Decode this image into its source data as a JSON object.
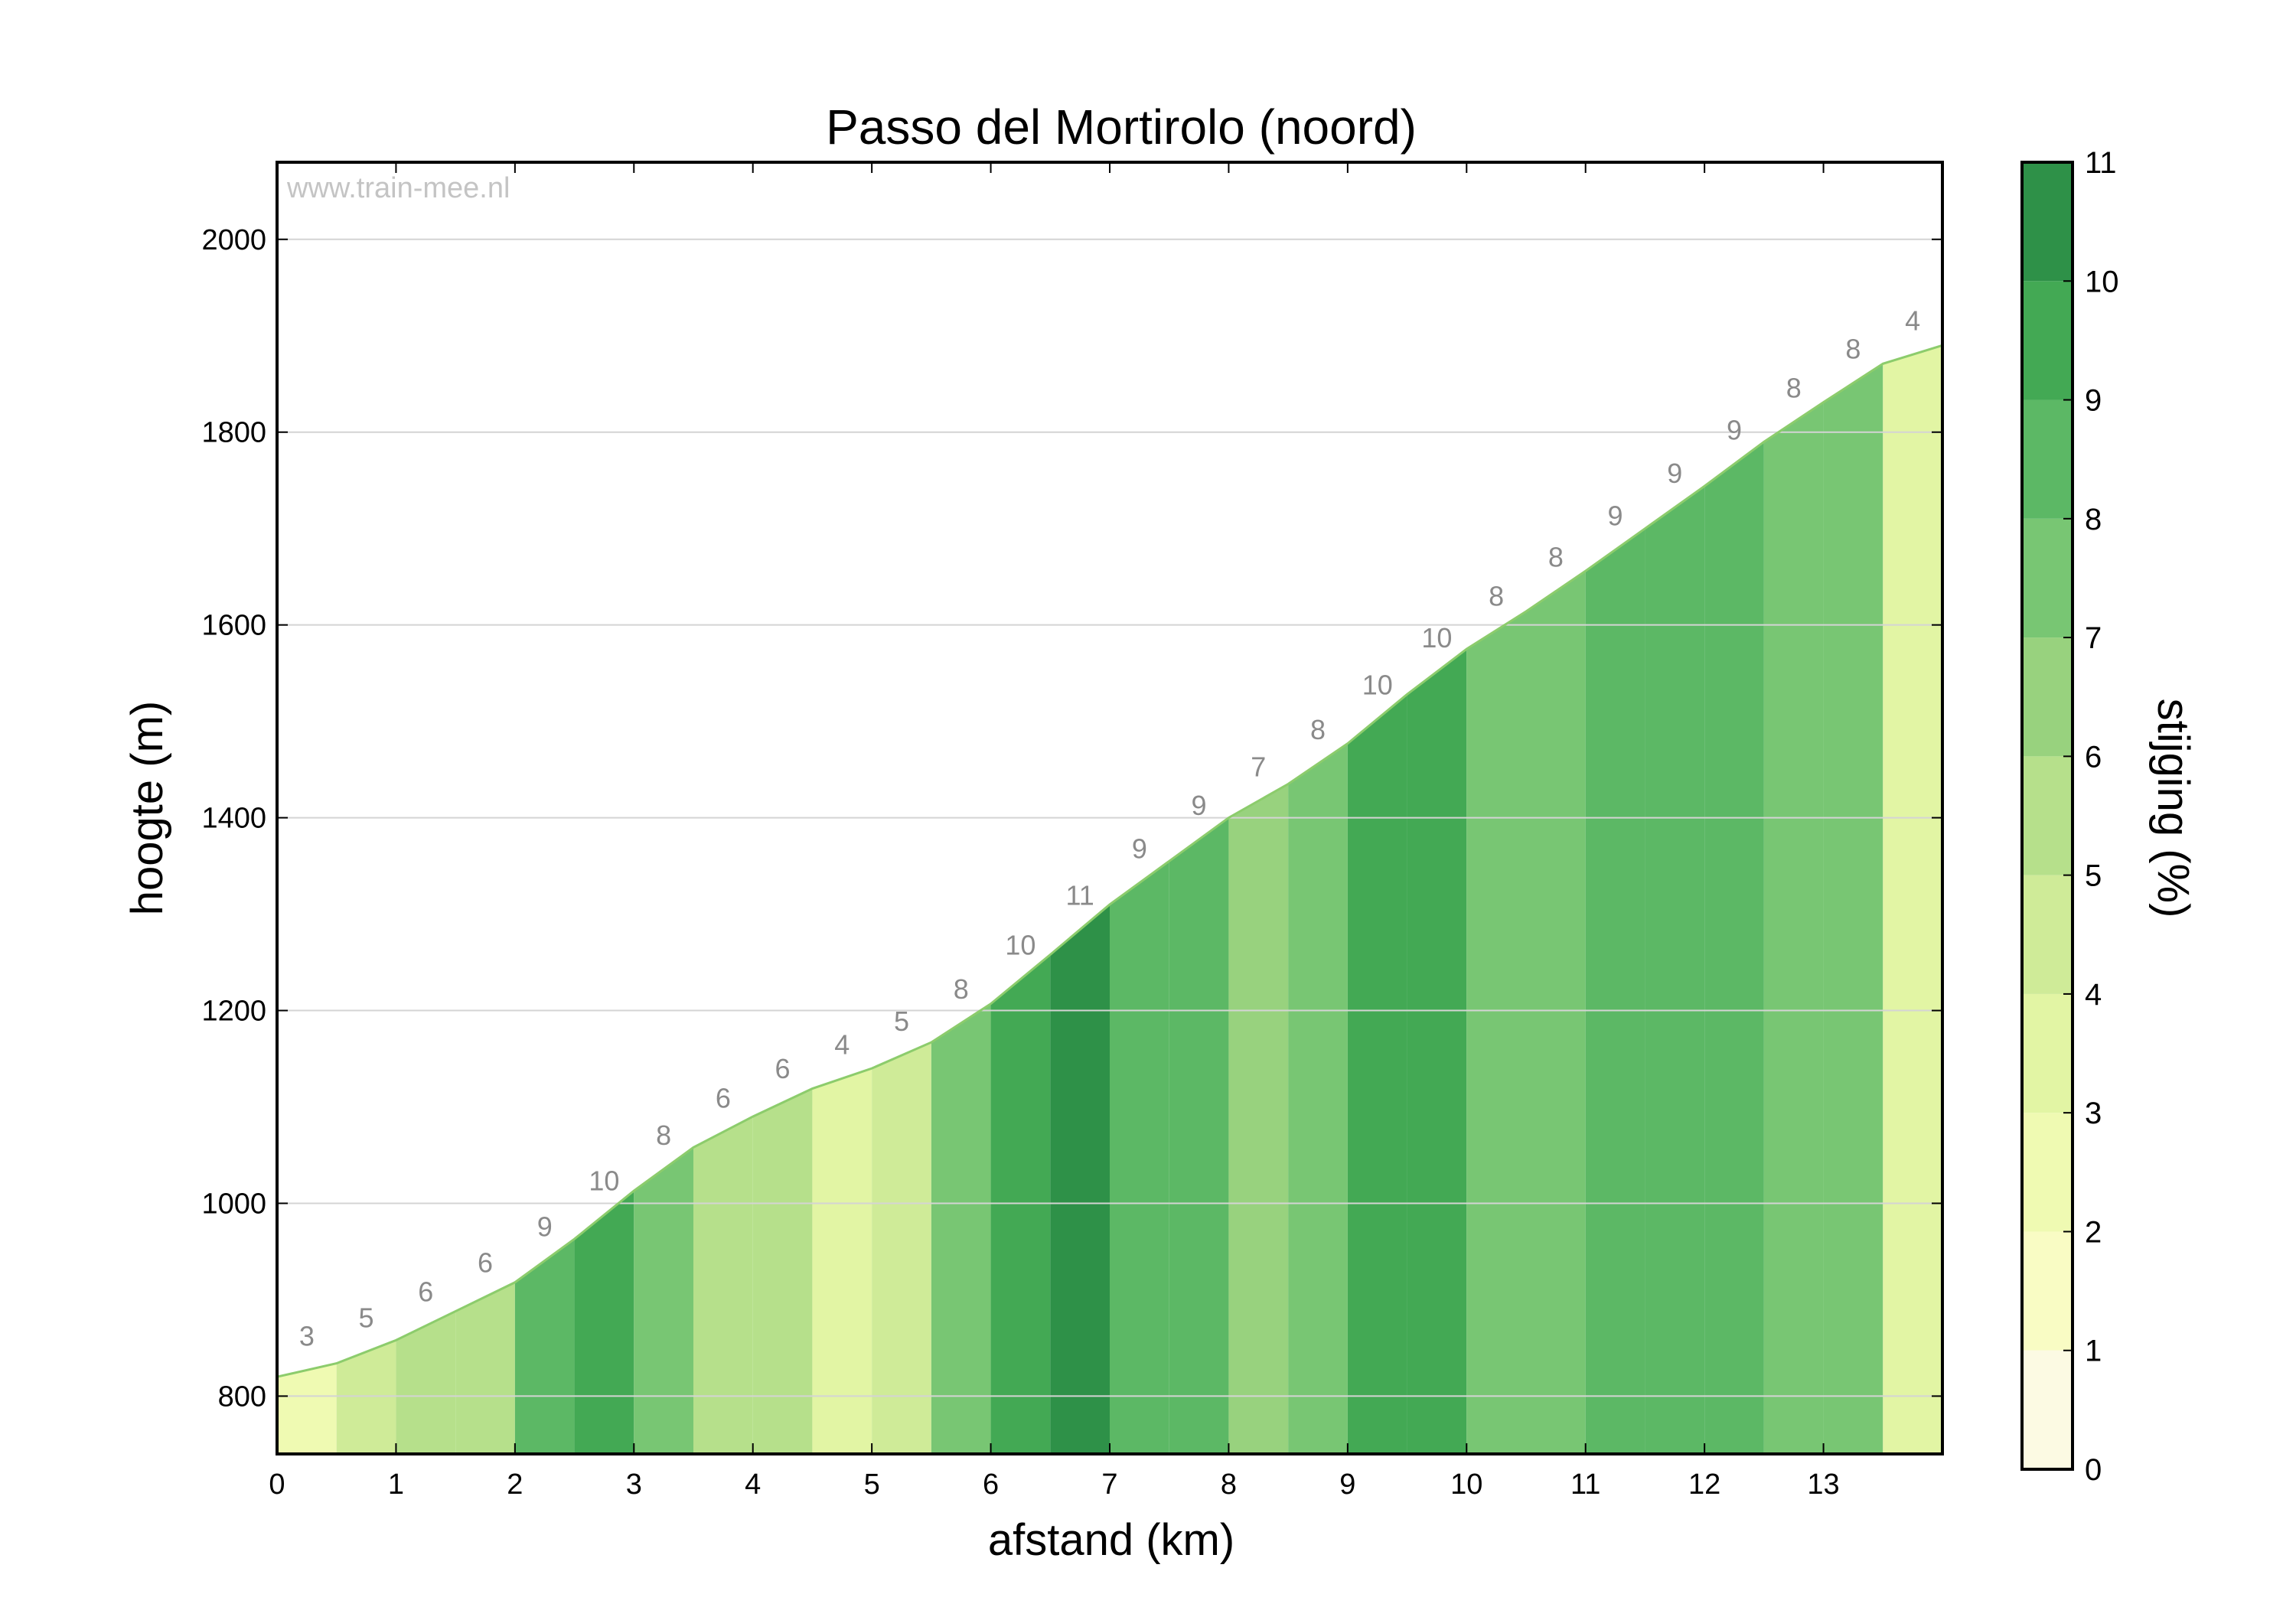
{
  "chart_data": {
    "type": "area",
    "title": "Passo del Mortirolo (noord)",
    "xlabel": "afstand (km)",
    "ylabel": "hoogte (m)",
    "watermark": "www.train-mee.nl",
    "xlim": [
      0,
      14
    ],
    "ylim": [
      740,
      2080
    ],
    "x_ticks": [
      0,
      1,
      2,
      3,
      4,
      5,
      6,
      7,
      8,
      9,
      10,
      11,
      12,
      13
    ],
    "y_ticks": [
      800,
      1000,
      1200,
      1400,
      1600,
      1800,
      2000
    ],
    "grid": "horizontal",
    "segments": [
      {
        "x_start": 0.0,
        "x_end": 0.5,
        "grade": 3
      },
      {
        "x_start": 0.5,
        "x_end": 1.0,
        "grade": 5
      },
      {
        "x_start": 1.0,
        "x_end": 1.5,
        "grade": 6
      },
      {
        "x_start": 1.5,
        "x_end": 2.0,
        "grade": 6
      },
      {
        "x_start": 2.0,
        "x_end": 2.5,
        "grade": 9
      },
      {
        "x_start": 2.5,
        "x_end": 3.0,
        "grade": 10
      },
      {
        "x_start": 3.0,
        "x_end": 3.5,
        "grade": 8
      },
      {
        "x_start": 3.5,
        "x_end": 4.0,
        "grade": 6
      },
      {
        "x_start": 4.0,
        "x_end": 4.5,
        "grade": 6
      },
      {
        "x_start": 4.5,
        "x_end": 5.0,
        "grade": 4
      },
      {
        "x_start": 5.0,
        "x_end": 5.5,
        "grade": 5
      },
      {
        "x_start": 5.5,
        "x_end": 6.0,
        "grade": 8
      },
      {
        "x_start": 6.0,
        "x_end": 6.5,
        "grade": 10
      },
      {
        "x_start": 6.5,
        "x_end": 7.0,
        "grade": 11
      },
      {
        "x_start": 7.0,
        "x_end": 7.5,
        "grade": 9
      },
      {
        "x_start": 7.5,
        "x_end": 8.0,
        "grade": 9
      },
      {
        "x_start": 8.0,
        "x_end": 8.5,
        "grade": 7
      },
      {
        "x_start": 8.5,
        "x_end": 9.0,
        "grade": 8
      },
      {
        "x_start": 9.0,
        "x_end": 9.5,
        "grade": 10
      },
      {
        "x_start": 9.5,
        "x_end": 10.0,
        "grade": 10
      },
      {
        "x_start": 10.0,
        "x_end": 10.5,
        "grade": 8
      },
      {
        "x_start": 10.5,
        "x_end": 11.0,
        "grade": 8
      },
      {
        "x_start": 11.0,
        "x_end": 11.5,
        "grade": 9
      },
      {
        "x_start": 11.5,
        "x_end": 12.0,
        "grade": 9
      },
      {
        "x_start": 12.0,
        "x_end": 12.5,
        "grade": 9
      },
      {
        "x_start": 12.5,
        "x_end": 13.0,
        "grade": 8
      },
      {
        "x_start": 13.0,
        "x_end": 13.5,
        "grade": 8
      },
      {
        "x_start": 13.5,
        "x_end": 14.0,
        "grade": 4
      }
    ],
    "elevation_profile": {
      "x": [
        0.0,
        0.5,
        1.0,
        1.5,
        2.0,
        2.5,
        3.0,
        3.5,
        4.0,
        4.5,
        5.0,
        5.5,
        6.0,
        6.5,
        7.0,
        7.5,
        8.0,
        8.5,
        9.0,
        9.5,
        10.0,
        10.5,
        11.0,
        11.5,
        12.0,
        12.5,
        13.0,
        13.5,
        14.0
      ],
      "y": [
        820,
        834,
        858,
        888,
        918,
        963,
        1013,
        1058,
        1090,
        1119,
        1140,
        1167,
        1207,
        1258,
        1310,
        1355,
        1400,
        1435,
        1477,
        1528,
        1575,
        1614,
        1656,
        1700,
        1744,
        1790,
        1831,
        1871,
        1890
      ]
    },
    "colorbar": {
      "label": "stijging (%)",
      "range": [
        0,
        11
      ],
      "ticks": [
        0,
        1,
        2,
        3,
        4,
        5,
        6,
        7,
        8,
        9,
        10,
        11
      ],
      "colors": [
        "#fcfae3",
        "#f9fcc4",
        "#effab2",
        "#e2f5a4",
        "#cfeb98",
        "#b6e08b",
        "#98d27e",
        "#78c673",
        "#5cb865",
        "#43a954",
        "#2e9148"
      ]
    }
  }
}
